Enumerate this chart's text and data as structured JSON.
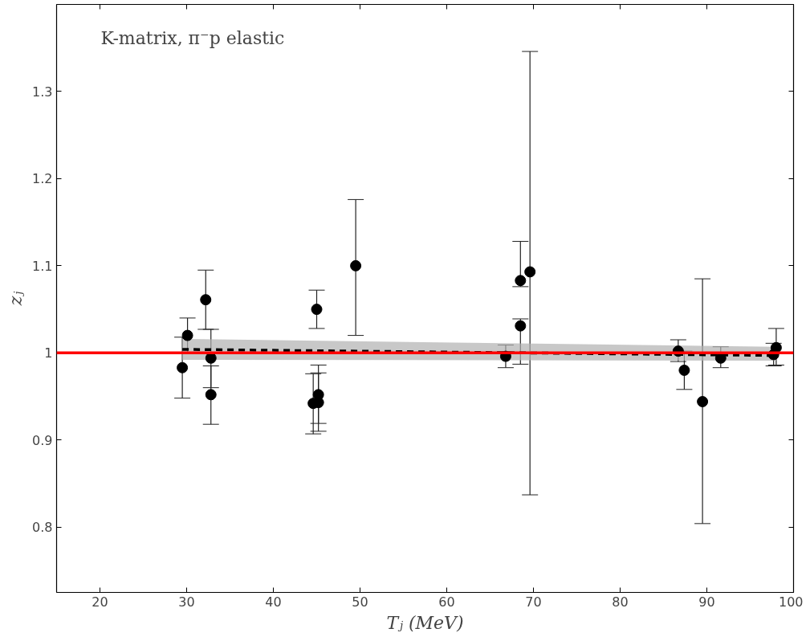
{
  "chart_data": {
    "type": "scatter",
    "xlabel": "Tⱼ (MeV)",
    "ylabel": "zⱼ",
    "annotations": [
      "K-matrix, π⁻p elastic"
    ],
    "xlim": [
      15,
      100
    ],
    "xticks": [
      20,
      30,
      40,
      50,
      60,
      70,
      80,
      90,
      100
    ],
    "ylim": [
      0.725,
      1.4
    ],
    "yticks": [
      0.8,
      0.9,
      {
        "value": 1.0,
        "label": "1"
      },
      1.1,
      1.2,
      1.3
    ],
    "grid": false,
    "marker": "circle",
    "series": [
      {
        "type": "line",
        "color": "#000000",
        "line_style": "dashed",
        "marker": "none",
        "x": [
          29.5,
          98.0
        ],
        "values": [
          1.004,
          0.997
        ],
        "lower": [
          0.992,
          0.991
        ],
        "upper": [
          1.016,
          1.007
        ]
      },
      {
        "color": "#000000",
        "x": [
          29.5,
          30.1,
          32.2,
          32.8,
          32.8,
          44.6,
          45.2,
          45.2,
          45.0,
          49.5,
          66.8,
          68.5,
          68.5,
          69.6,
          86.7,
          87.4,
          89.5,
          91.6,
          97.7,
          98.0
        ],
        "values": [
          0.983,
          1.02,
          1.061,
          0.994,
          0.952,
          0.942,
          0.943,
          0.952,
          1.05,
          1.1,
          0.996,
          1.031,
          1.083,
          1.093,
          1.002,
          0.98,
          0.944,
          0.994,
          0.998,
          1.006
        ],
        "errors": [
          [
            0.948,
            1.018
          ],
          [
            1.0,
            1.04
          ],
          [
            1.027,
            1.095
          ],
          [
            0.96,
            1.027
          ],
          [
            0.918,
            0.985
          ],
          [
            0.907,
            0.976
          ],
          [
            0.91,
            0.977
          ],
          [
            0.919,
            0.986
          ],
          [
            1.028,
            1.072
          ],
          [
            1.02,
            1.176
          ],
          [
            0.983,
            1.009
          ],
          [
            0.987,
            1.039
          ],
          [
            1.076,
            1.128
          ],
          [
            0.837,
            1.346
          ],
          [
            0.99,
            1.015
          ],
          [
            0.958,
            1.002
          ],
          [
            0.804,
            1.085
          ],
          [
            0.983,
            1.007
          ],
          [
            0.985,
            1.011
          ],
          [
            0.986,
            1.028
          ]
        ]
      }
    ],
    "ref_lines": [
      {
        "axis": "y",
        "value": 1.0,
        "color": "#ff0000",
        "line_style": "solid"
      }
    ]
  }
}
